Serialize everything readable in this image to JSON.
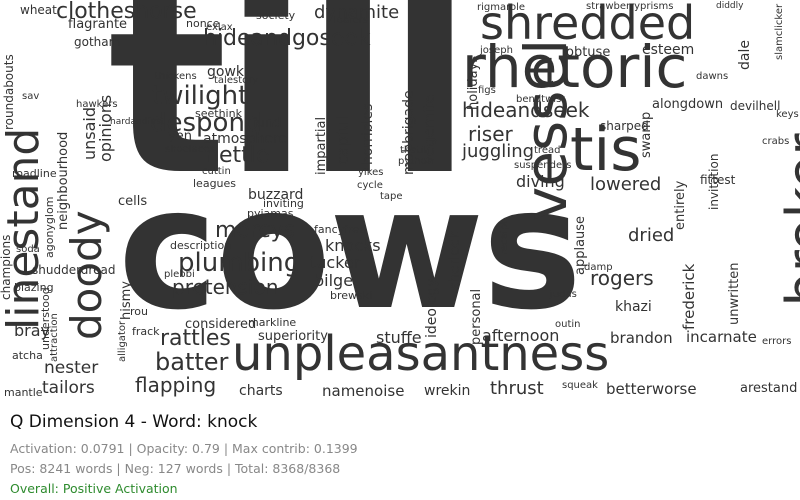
{
  "header": {
    "title": "Q Dimension 4 - Word: knock",
    "metrics": "Activation: 0.0791 | Opacity: 0.79 | Max contrib: 0.1399",
    "counts": "Pos: 8241 words | Neg: 127 words | Total: 8368/8368",
    "status": "Overall: Positive Activation",
    "status_color": "#2e8b2e"
  },
  "cloud": {
    "text_color": "#333333",
    "words": [
      {
        "t": "till"
      },
      {
        "t": "cows"
      },
      {
        "t": "unpleasantness"
      },
      {
        "t": "shredded"
      },
      {
        "t": "rhetoric"
      },
      {
        "t": "tis"
      },
      {
        "t": "vessel"
      },
      {
        "t": "broker"
      },
      {
        "t": "linestand"
      },
      {
        "t": "doody"
      },
      {
        "t": "hideandgoseek"
      },
      {
        "t": "twilight"
      },
      {
        "t": "despond"
      },
      {
        "t": "nettle"
      },
      {
        "t": "mercys"
      },
      {
        "t": "plumbing"
      },
      {
        "t": "pretension"
      },
      {
        "t": "rattles"
      },
      {
        "t": "batter"
      },
      {
        "t": "flapping"
      },
      {
        "t": "clotheshorse"
      },
      {
        "t": "dynamite"
      },
      {
        "t": "hideandseek"
      },
      {
        "t": "riser"
      },
      {
        "t": "juggling"
      },
      {
        "t": "rogers"
      },
      {
        "t": "dried"
      },
      {
        "t": "diving"
      },
      {
        "t": "lowered"
      },
      {
        "t": "thrust"
      },
      {
        "t": "afternoon"
      },
      {
        "t": "stuffe"
      },
      {
        "t": "brandon"
      },
      {
        "t": "incarnate"
      },
      {
        "t": "betterworse"
      },
      {
        "t": "arestand"
      },
      {
        "t": "namenoise"
      },
      {
        "t": "wrekin"
      },
      {
        "t": "tailors"
      },
      {
        "t": "nester"
      },
      {
        "t": "bray"
      },
      {
        "t": "charts"
      },
      {
        "t": "considered"
      },
      {
        "t": "superiority"
      },
      {
        "t": "knocks"
      },
      {
        "t": "tucker"
      },
      {
        "t": "bilge"
      },
      {
        "t": "ideology"
      },
      {
        "t": "sherlock"
      },
      {
        "t": "personal"
      },
      {
        "t": "frederick"
      },
      {
        "t": "unwritten"
      },
      {
        "t": "khazi"
      },
      {
        "t": "capful"
      },
      {
        "t": "mobbrigade"
      },
      {
        "t": "vegemite"
      },
      {
        "t": "horribles"
      },
      {
        "t": "impartial"
      },
      {
        "t": "gowk"
      },
      {
        "t": "atmosphere"
      },
      {
        "t": "buzzard"
      },
      {
        "t": "unsaid"
      },
      {
        "t": "opinions"
      },
      {
        "t": "neighbourhood"
      },
      {
        "t": "champions"
      },
      {
        "t": "gotham"
      },
      {
        "t": "flagrante"
      },
      {
        "t": "wheat"
      },
      {
        "t": "society"
      },
      {
        "t": "nonce"
      },
      {
        "t": "esteem"
      },
      {
        "t": "obtuse"
      },
      {
        "t": "dale"
      },
      {
        "t": "alongdown"
      },
      {
        "t": "holidays"
      },
      {
        "t": "swamp"
      },
      {
        "t": "sharped"
      },
      {
        "t": "entirely"
      },
      {
        "t": "applause"
      },
      {
        "t": "fittest"
      },
      {
        "t": "invitation"
      },
      {
        "t": "devilhell"
      },
      {
        "t": "fund"
      },
      {
        "t": "yen"
      },
      {
        "t": "cells"
      },
      {
        "t": "leagues"
      },
      {
        "t": "pyjamas"
      },
      {
        "t": "inviting"
      },
      {
        "t": "fancyfree"
      },
      {
        "t": "plebbi"
      },
      {
        "t": "hismy"
      },
      {
        "t": "description"
      },
      {
        "t": "shudderdread"
      },
      {
        "t": "rou"
      },
      {
        "t": "frack"
      },
      {
        "t": "markline"
      },
      {
        "t": "understood"
      },
      {
        "t": "attraction"
      },
      {
        "t": "mantle"
      },
      {
        "t": "atcha"
      },
      {
        "t": "rigmarole"
      },
      {
        "t": "strawberryprisms"
      },
      {
        "t": "diddly"
      },
      {
        "t": "joseph"
      },
      {
        "t": "dawns"
      },
      {
        "t": "slamclicker"
      },
      {
        "t": "keys"
      },
      {
        "t": "crabs"
      },
      {
        "t": "errors"
      },
      {
        "t": "damp"
      },
      {
        "t": "judas"
      },
      {
        "t": "outin"
      },
      {
        "t": "receipt"
      },
      {
        "t": "brewski"
      },
      {
        "t": "seethink"
      },
      {
        "t": "shoelaces"
      },
      {
        "t": "thickens"
      },
      {
        "t": "hawkers"
      },
      {
        "t": "cuttin"
      },
      {
        "t": "roundabouts"
      },
      {
        "t": "roadline"
      },
      {
        "t": "soda"
      },
      {
        "t": "blazing"
      },
      {
        "t": "alligator"
      },
      {
        "t": "thatit"
      },
      {
        "t": "python"
      },
      {
        "t": "yikes"
      },
      {
        "t": "cycle"
      },
      {
        "t": "tape"
      },
      {
        "t": "loafers"
      },
      {
        "t": "figs"
      },
      {
        "t": "bendtwist"
      },
      {
        "t": "tread"
      },
      {
        "t": "suspenders"
      },
      {
        "t": "squeak"
      },
      {
        "t": "agonyglom"
      },
      {
        "t": "talestory"
      },
      {
        "t": "exlax"
      },
      {
        "t": "sav"
      },
      {
        "t": "hardandfast"
      }
    ]
  }
}
